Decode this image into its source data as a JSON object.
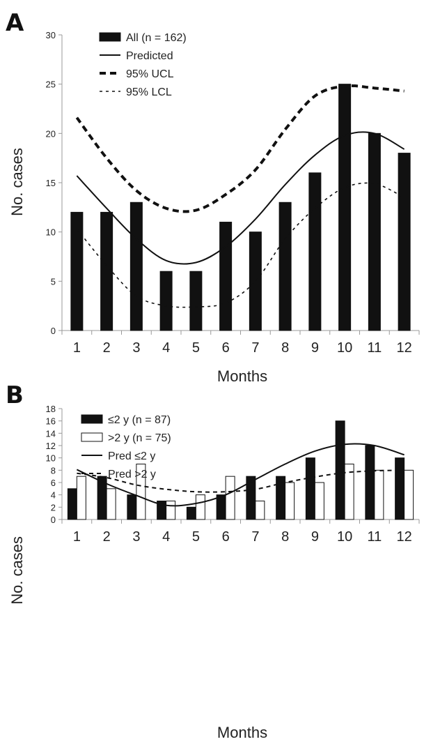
{
  "chart_data": [
    {
      "panel": "A",
      "type": "bar",
      "xlabel": "Months",
      "ylabel": "No. cases",
      "ylim": [
        0,
        30
      ],
      "yticks": [
        0,
        5,
        10,
        15,
        20,
        25,
        30
      ],
      "categories": [
        "1",
        "2",
        "3",
        "4",
        "5",
        "6",
        "7",
        "8",
        "9",
        "10",
        "11",
        "12"
      ],
      "legend_position": "top-left",
      "series": [
        {
          "name": "All (n = 162)",
          "kind": "bar",
          "color": "#111111",
          "values": [
            12,
            12,
            13,
            6,
            6,
            11,
            10,
            13,
            16,
            25,
            20,
            18
          ]
        },
        {
          "name": "Predicted",
          "kind": "line",
          "style": "solid",
          "color": "#111111",
          "values": [
            15.7,
            12.4,
            9.3,
            7.1,
            6.9,
            8.5,
            11.3,
            14.8,
            17.8,
            19.8,
            20.0,
            18.4
          ]
        },
        {
          "name": "95% UCL",
          "kind": "line",
          "style": "heavy-dash",
          "color": "#111111",
          "values": [
            21.6,
            17.5,
            14.2,
            12.4,
            12.2,
            13.8,
            16.3,
            20.4,
            23.8,
            24.8,
            24.6,
            24.3
          ]
        },
        {
          "name": "95% LCL",
          "kind": "line",
          "style": "light-dot",
          "color": "#111111",
          "values": [
            10.3,
            6.6,
            3.5,
            2.5,
            2.4,
            2.8,
            5.0,
            9.3,
            12.4,
            14.5,
            14.9,
            13.5
          ]
        }
      ]
    },
    {
      "panel": "B",
      "type": "bar",
      "xlabel": "Months",
      "ylabel": "No. cases",
      "ylim": [
        0,
        18
      ],
      "yticks": [
        0,
        2,
        4,
        6,
        8,
        10,
        12,
        14,
        16,
        18
      ],
      "categories": [
        "1",
        "2",
        "3",
        "4",
        "5",
        "6",
        "7",
        "8",
        "9",
        "10",
        "11",
        "12"
      ],
      "legend_position": "top-left",
      "series": [
        {
          "name": "≤2 y (n = 87)",
          "kind": "bar",
          "fill": "#111111",
          "values": [
            5,
            7,
            4,
            3,
            2,
            4,
            7,
            7,
            10,
            16,
            12,
            10
          ]
        },
        {
          "name": ">2 y (n = 75)",
          "kind": "bar",
          "fill": "#ffffff",
          "values": [
            7,
            5,
            9,
            3,
            4,
            7,
            3,
            6,
            6,
            9,
            8,
            8
          ]
        },
        {
          "name": "Pred ≤2 y",
          "kind": "line",
          "style": "solid",
          "color": "#111111",
          "values": [
            8.1,
            5.8,
            3.9,
            2.3,
            2.6,
            4.0,
            6.5,
            9.0,
            11.1,
            12.2,
            12.0,
            10.5
          ]
        },
        {
          "name": "Pred >2 y",
          "kind": "line",
          "style": "dash",
          "color": "#111111",
          "values": [
            7.5,
            6.8,
            5.6,
            4.9,
            4.5,
            4.5,
            4.9,
            6.0,
            6.9,
            7.6,
            7.9,
            8.0
          ]
        }
      ]
    }
  ]
}
